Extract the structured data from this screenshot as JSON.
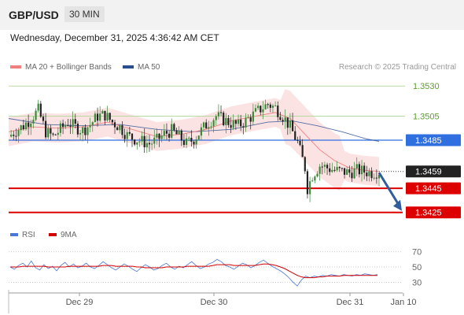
{
  "header": {
    "pair": "GBP/USD",
    "timeframe": "30 MIN"
  },
  "timestamp": "Wednesday, December 31, 2025 4:36:42 AM CET",
  "legend": {
    "ma20": {
      "label": "MA 20 + Bollinger Bands",
      "color": "#f08080"
    },
    "ma50": {
      "label": "MA 50",
      "color": "#2a4d8f"
    }
  },
  "credit": "Research © 2025 Trading Central",
  "rsi_legend": {
    "rsi": {
      "label": "RSI",
      "color": "#4a78d6"
    },
    "ma": {
      "label": "9MA",
      "color": "#d40000"
    }
  },
  "chart_data": [
    {
      "type": "candlestick",
      "title": "",
      "ylim": [
        1.3415,
        1.3538
      ],
      "x_ticks": [
        "Dec 29",
        "Dec 30",
        "Dec 31",
        "Jan 10"
      ],
      "last_price": {
        "value": 1.3459,
        "label": "1.3459",
        "color": "#222222"
      },
      "levels": [
        {
          "value": 1.353,
          "label": "1.3530",
          "color": "#b8d9a0",
          "text_color": "#5c9e2e",
          "style": "resistance"
        },
        {
          "value": 1.3505,
          "label": "1.3505",
          "color": "#b8d9a0",
          "text_color": "#5c9e2e",
          "style": "resistance"
        },
        {
          "value": 1.3485,
          "label": "1.3485",
          "color": "#2f6fe0",
          "text_color": "#ffffff",
          "style": "pivot"
        },
        {
          "value": 1.3445,
          "label": "1.3445",
          "color": "#dd0000",
          "text_color": "#ffffff",
          "style": "support"
        },
        {
          "value": 1.3425,
          "label": "1.3425",
          "color": "#dd0000",
          "text_color": "#ffffff",
          "style": "support"
        }
      ],
      "forecast_arrow": {
        "from": 1.3458,
        "to": 1.3425,
        "color": "#2f5d9e"
      },
      "close_path": [
        [
          0,
          1.3488
        ],
        [
          3,
          1.3493
        ],
        [
          6,
          1.3497
        ],
        [
          9,
          1.3503
        ],
        [
          12,
          1.351
        ],
        [
          15,
          1.3492
        ],
        [
          18,
          1.3488
        ],
        [
          21,
          1.3494
        ],
        [
          24,
          1.35
        ],
        [
          27,
          1.3496
        ],
        [
          30,
          1.3493
        ],
        [
          33,
          1.3498
        ],
        [
          36,
          1.3505
        ],
        [
          39,
          1.3506
        ],
        [
          42,
          1.35
        ],
        [
          45,
          1.3496
        ],
        [
          48,
          1.3489
        ],
        [
          51,
          1.3486
        ],
        [
          54,
          1.3484
        ],
        [
          57,
          1.3482
        ],
        [
          60,
          1.3485
        ],
        [
          63,
          1.349
        ],
        [
          66,
          1.3493
        ],
        [
          69,
          1.3488
        ],
        [
          72,
          1.3482
        ],
        [
          75,
          1.3486
        ],
        [
          78,
          1.3493
        ],
        [
          81,
          1.35
        ],
        [
          84,
          1.3505
        ],
        [
          87,
          1.3502
        ],
        [
          90,
          1.3499
        ],
        [
          93,
          1.3497
        ],
        [
          96,
          1.3501
        ],
        [
          99,
          1.3506
        ],
        [
          102,
          1.3511
        ],
        [
          105,
          1.3515
        ],
        [
          108,
          1.3512
        ],
        [
          111,
          1.3505
        ],
        [
          114,
          1.3496
        ],
        [
          117,
          1.3483
        ],
        [
          120,
          1.3462
        ],
        [
          121,
          1.3445
        ],
        [
          123,
          1.3456
        ],
        [
          126,
          1.3464
        ],
        [
          129,
          1.3462
        ],
        [
          132,
          1.346
        ],
        [
          135,
          1.3459
        ],
        [
          138,
          1.3458
        ],
        [
          141,
          1.346
        ],
        [
          144,
          1.3459
        ],
        [
          147,
          1.3458
        ],
        [
          150,
          1.3459
        ]
      ],
      "ma20": [
        [
          0,
          1.3492
        ],
        [
          10,
          1.3496
        ],
        [
          20,
          1.3495
        ],
        [
          30,
          1.3496
        ],
        [
          40,
          1.35
        ],
        [
          50,
          1.3494
        ],
        [
          60,
          1.3488
        ],
        [
          70,
          1.349
        ],
        [
          80,
          1.3494
        ],
        [
          90,
          1.3501
        ],
        [
          100,
          1.3505
        ],
        [
          108,
          1.3508
        ],
        [
          114,
          1.3503
        ],
        [
          120,
          1.349
        ],
        [
          126,
          1.3477
        ],
        [
          132,
          1.3468
        ],
        [
          138,
          1.3462
        ],
        [
          144,
          1.346
        ],
        [
          150,
          1.3459
        ]
      ],
      "ma50": [
        [
          0,
          1.3503
        ],
        [
          15,
          1.3498
        ],
        [
          30,
          1.3497
        ],
        [
          45,
          1.3498
        ],
        [
          60,
          1.3494
        ],
        [
          75,
          1.3492
        ],
        [
          90,
          1.3494
        ],
        [
          105,
          1.35
        ],
        [
          115,
          1.3501
        ],
        [
          125,
          1.3497
        ],
        [
          135,
          1.3492
        ],
        [
          145,
          1.3486
        ],
        [
          150,
          1.3484
        ]
      ],
      "bollinger_width": 0.0012
    },
    {
      "type": "line",
      "title": "",
      "ylim": [
        20,
        78
      ],
      "y_ticks": [
        70,
        50,
        30
      ],
      "series": [
        {
          "name": "RSI",
          "color": "#4a78d6",
          "values": [
            50,
            47,
            52,
            55,
            50,
            58,
            49,
            46,
            53,
            48,
            51,
            45,
            52,
            56,
            50,
            54,
            49,
            51,
            55,
            50,
            48,
            52,
            57,
            53,
            49,
            46,
            50,
            54,
            51,
            47,
            44,
            49,
            53,
            50,
            46,
            48,
            52,
            55,
            50,
            47,
            51,
            49,
            53,
            57,
            52,
            48,
            50,
            54,
            56,
            60,
            57,
            52,
            50,
            47,
            51,
            55,
            53,
            49,
            52,
            56,
            59,
            55,
            51,
            48,
            45,
            41,
            36,
            30,
            25,
            33,
            38,
            36,
            38,
            37,
            39,
            38,
            40,
            39,
            38,
            40,
            39,
            38,
            40,
            39,
            41,
            40,
            39,
            40
          ]
        },
        {
          "name": "9MA",
          "color": "#d40000",
          "values": [
            50,
            50,
            50,
            51,
            51,
            51,
            51,
            51,
            51,
            50,
            50,
            50,
            50,
            50,
            51,
            51,
            51,
            51,
            51,
            51,
            51,
            51,
            52,
            52,
            52,
            51,
            51,
            51,
            51,
            51,
            50,
            50,
            49,
            49,
            49,
            49,
            49,
            50,
            50,
            50,
            50,
            50,
            51,
            51,
            51,
            51,
            51,
            51,
            52,
            53,
            53,
            53,
            53,
            52,
            52,
            52,
            52,
            52,
            52,
            53,
            54,
            54,
            53,
            52,
            50,
            48,
            45,
            42,
            39,
            37,
            36,
            36,
            36,
            37,
            37,
            38,
            38,
            38,
            38,
            39,
            39,
            39,
            39,
            39,
            39,
            39,
            39,
            39
          ]
        }
      ]
    }
  ]
}
